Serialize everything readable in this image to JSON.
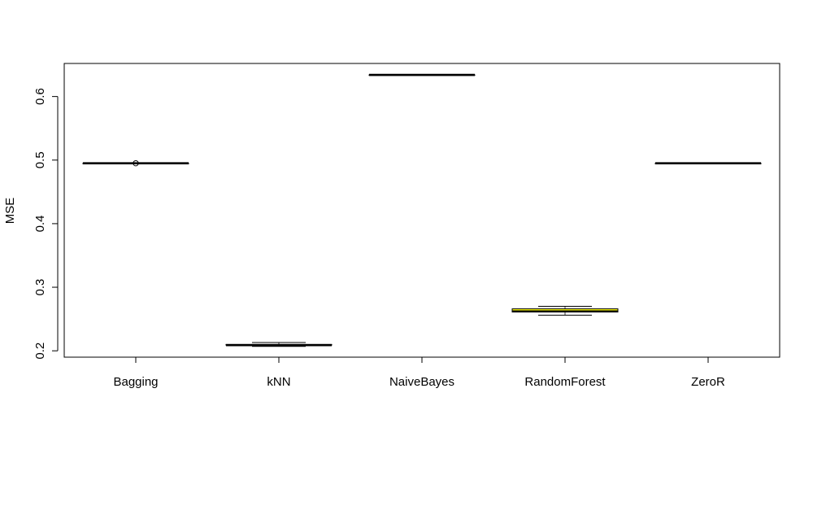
{
  "chart_data": {
    "type": "boxplot",
    "title": "",
    "xlabel": "",
    "ylabel": "MSE",
    "ylim": [
      0.19,
      0.652
    ],
    "yticks": [
      0.2,
      0.3,
      0.4,
      0.5,
      0.6
    ],
    "ytick_labels": [
      "0.2",
      "0.3",
      "0.4",
      "0.5",
      "0.6"
    ],
    "categories": [
      "Bagging",
      "kNN",
      "NaiveBayes",
      "RandomForest",
      "ZeroR"
    ],
    "boxes": [
      {
        "name": "Bagging",
        "whisker_low": 0.495,
        "q1": 0.495,
        "median": 0.495,
        "q3": 0.495,
        "whisker_high": 0.495,
        "outliers": [
          0.495
        ]
      },
      {
        "name": "kNN",
        "whisker_low": 0.207,
        "q1": 0.209,
        "median": 0.209,
        "q3": 0.21,
        "whisker_high": 0.213,
        "outliers": []
      },
      {
        "name": "NaiveBayes",
        "whisker_low": 0.634,
        "q1": 0.634,
        "median": 0.634,
        "q3": 0.634,
        "whisker_high": 0.634,
        "outliers": []
      },
      {
        "name": "RandomForest",
        "whisker_low": 0.256,
        "q1": 0.261,
        "median": 0.262,
        "q3": 0.266,
        "whisker_high": 0.27,
        "outliers": []
      },
      {
        "name": "ZeroR",
        "whisker_low": 0.495,
        "q1": 0.495,
        "median": 0.495,
        "q3": 0.495,
        "whisker_high": 0.495,
        "outliers": []
      }
    ],
    "box_fill": "#ffff00",
    "grid": false,
    "legend": "none"
  }
}
